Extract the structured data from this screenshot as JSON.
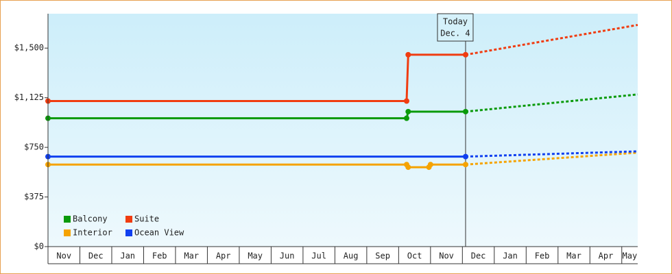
{
  "chart_data": {
    "type": "line",
    "xlim": [
      0,
      18.5
    ],
    "xticks": [
      {
        "value": 0,
        "label": "Nov"
      },
      {
        "value": 1,
        "label": "Dec"
      },
      {
        "value": 2,
        "label": "Jan"
      },
      {
        "value": 3,
        "label": "Feb"
      },
      {
        "value": 4,
        "label": "Mar"
      },
      {
        "value": 5,
        "label": "Apr"
      },
      {
        "value": 6,
        "label": "May"
      },
      {
        "value": 7,
        "label": "Jun"
      },
      {
        "value": 8,
        "label": "Jul"
      },
      {
        "value": 9,
        "label": "Aug"
      },
      {
        "value": 10,
        "label": "Sep"
      },
      {
        "value": 11,
        "label": "Oct"
      },
      {
        "value": 12,
        "label": "Nov"
      },
      {
        "value": 13,
        "label": "Dec"
      },
      {
        "value": 14,
        "label": "Jan"
      },
      {
        "value": 15,
        "label": "Feb"
      },
      {
        "value": 16,
        "label": "Mar"
      },
      {
        "value": 17,
        "label": "Apr"
      },
      {
        "value": 18,
        "label": "May"
      }
    ],
    "ylim": [
      0,
      1760
    ],
    "yticks": [
      {
        "value": 0,
        "label": "$0"
      },
      {
        "value": 375,
        "label": "$375"
      },
      {
        "value": 750,
        "label": "$750"
      },
      {
        "value": 1125,
        "label": "$1,125"
      },
      {
        "value": 1500,
        "label": "$1,500"
      }
    ],
    "today": {
      "x": 13.1,
      "label": "Today",
      "date": "Dec. 4"
    },
    "legend": "lower left",
    "series": [
      {
        "name": "Balcony",
        "color": "#0a9a0a",
        "x": [
          0,
          11.25,
          11.3,
          13.1
        ],
        "values": [
          970,
          970,
          1020,
          1020
        ],
        "forecast_x": [
          13.1,
          18.5
        ],
        "forecast_values": [
          1020,
          1150
        ]
      },
      {
        "name": "Suite",
        "color": "#f03c10",
        "x": [
          0,
          11.25,
          11.3,
          13.1
        ],
        "values": [
          1100,
          1100,
          1450,
          1450
        ],
        "forecast_x": [
          13.1,
          18.5
        ],
        "forecast_values": [
          1450,
          1675
        ]
      },
      {
        "name": "Interior",
        "color": "#f5a300",
        "x": [
          0,
          11.25,
          11.3,
          11.95,
          12.0,
          13.1
        ],
        "values": [
          620,
          620,
          600,
          600,
          620,
          620
        ],
        "forecast_x": [
          13.1,
          18.5
        ],
        "forecast_values": [
          620,
          710
        ]
      },
      {
        "name": "Ocean View",
        "color": "#1040f0",
        "x": [
          0,
          13.1
        ],
        "values": [
          680,
          680
        ],
        "forecast_x": [
          13.1,
          18.5
        ],
        "forecast_values": [
          680,
          720
        ]
      }
    ]
  }
}
